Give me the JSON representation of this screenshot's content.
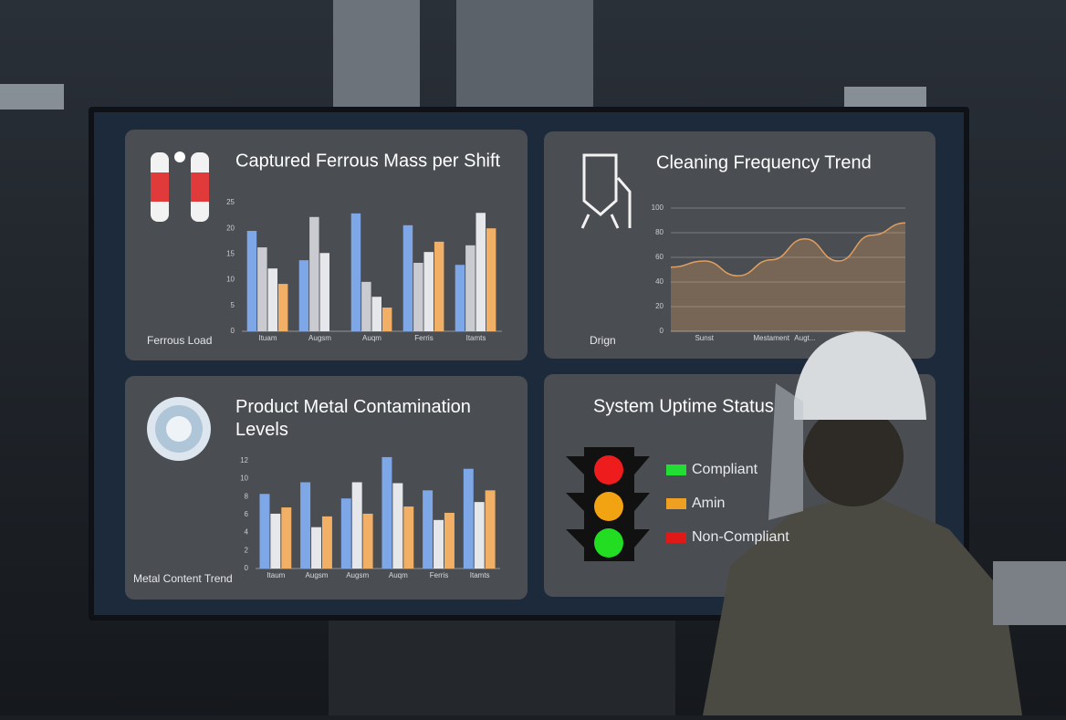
{
  "chart_data": [
    {
      "type": "bar",
      "title": "Captured Ferrous Mass per Shift",
      "caption": "Ferrous Load",
      "categories": [
        "Ituam",
        "Augsm",
        "Auqm",
        "Ferris",
        "Itamts"
      ],
      "series": [
        {
          "color": "#7ea7e8",
          "values": [
            19.5,
            13.8,
            22.9,
            20.6,
            12.9
          ]
        },
        {
          "color": "#c9cbd0",
          "values": [
            16.3,
            22.2,
            9.6,
            13.3,
            16.7
          ]
        },
        {
          "color": "#e6e7ea",
          "values": [
            12.2,
            15.2,
            6.7,
            15.4,
            23
          ]
        },
        {
          "color": "#f2b066",
          "values": [
            9.2,
            null,
            4.6,
            17.4,
            20
          ]
        }
      ],
      "ylim": [
        0,
        25
      ],
      "yticks": [
        0,
        5,
        10,
        15,
        20,
        25
      ],
      "grid": false
    },
    {
      "type": "line",
      "title": "Cleaning Frequency Trend",
      "caption": "Drign",
      "categories": [
        null,
        "Sunst",
        null,
        "Mestament",
        "Augt...",
        null,
        null,
        null
      ],
      "color": "#e0a060",
      "values": [
        52,
        57,
        45,
        58,
        75,
        57,
        78,
        88
      ],
      "ylim": [
        0,
        100
      ],
      "yticks": [
        0,
        20,
        40,
        60,
        80,
        100
      ],
      "grid": true
    },
    {
      "type": "bar",
      "title": "Product Metal Contamination Levels",
      "caption": "Metal Content Trend",
      "categories": [
        "Itaum",
        "Augsm",
        "Augsm",
        "Auqm",
        "Ferris",
        "Itamts"
      ],
      "series": [
        {
          "color": "#7ea7e8",
          "values": [
            8.3,
            9.6,
            7.8,
            12.4,
            8.7,
            11.1
          ]
        },
        {
          "color": "#e6e7ea",
          "values": [
            6.1,
            4.6,
            9.6,
            9.5,
            5.4,
            7.4
          ]
        },
        {
          "color": "#f2b066",
          "values": [
            6.8,
            5.8,
            6.1,
            6.9,
            6.2,
            8.7
          ]
        }
      ],
      "ylim": [
        0,
        13
      ],
      "yticks": [
        0,
        2,
        4,
        6,
        8,
        10,
        12
      ],
      "grid": false
    }
  ],
  "status": {
    "title": "System Uptime Status",
    "legend": [
      {
        "label": "Compliant",
        "color": "#22dd33"
      },
      {
        "label": "Amin",
        "color": "#f0a020"
      },
      {
        "label": "Non-Compliant",
        "color": "#e01818"
      }
    ]
  }
}
